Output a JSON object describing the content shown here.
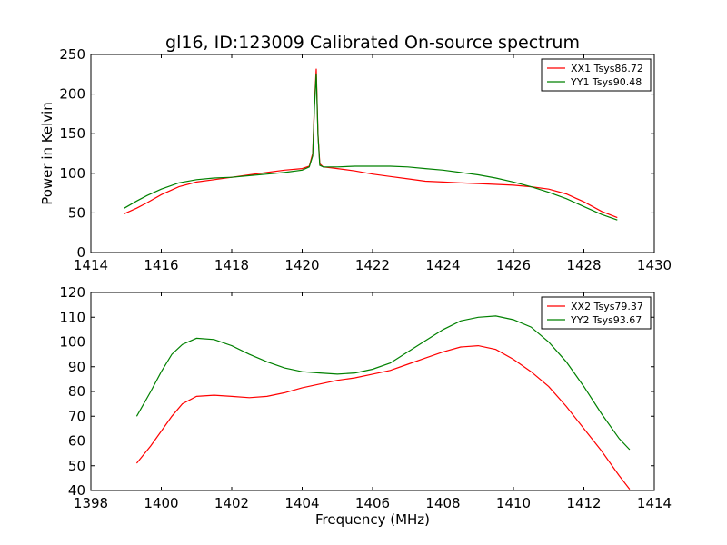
{
  "figure": {
    "title": "gl16, ID:123009 Calibrated On-source spectrum",
    "ylabel": "Power in Kelvin",
    "xlabel": "Frequency (MHz)"
  },
  "chart_data": [
    {
      "type": "line",
      "title": "gl16, ID:123009 Calibrated On-source spectrum",
      "xlabel": "",
      "ylabel": "Power in Kelvin",
      "xlim": [
        1414,
        1430
      ],
      "ylim": [
        0,
        250
      ],
      "xticks": [
        "1414",
        "1416",
        "1418",
        "1420",
        "1422",
        "1424",
        "1426",
        "1428",
        "1430"
      ],
      "yticks": [
        "0",
        "50",
        "100",
        "150",
        "200",
        "250"
      ],
      "grid": false,
      "legend_position": "top-right",
      "series": [
        {
          "name": "XX1 Tsys86.72",
          "color": "#ff0000",
          "x": [
            1414.95,
            1415.3,
            1415.6,
            1416.0,
            1416.5,
            1417.0,
            1417.5,
            1418.0,
            1418.5,
            1419.0,
            1419.5,
            1420.0,
            1420.2,
            1420.3,
            1420.35,
            1420.4,
            1420.45,
            1420.5,
            1420.6,
            1420.8,
            1421.0,
            1421.5,
            1422.0,
            1422.5,
            1423.0,
            1423.5,
            1424.0,
            1424.5,
            1425.0,
            1425.5,
            1426.0,
            1426.5,
            1427.0,
            1427.5,
            1428.0,
            1428.5,
            1428.95
          ],
          "y": [
            49,
            56,
            63,
            73,
            83,
            89,
            92,
            95,
            98,
            101,
            104,
            106,
            109,
            125,
            190,
            232,
            150,
            112,
            108,
            107,
            106,
            103,
            99,
            96,
            93,
            90,
            89,
            88,
            87,
            86,
            85,
            83,
            80,
            74,
            64,
            52,
            44
          ]
        },
        {
          "name": "YY1 Tsys90.48",
          "color": "#008000",
          "x": [
            1414.95,
            1415.3,
            1415.6,
            1416.0,
            1416.5,
            1417.0,
            1417.5,
            1418.0,
            1418.5,
            1419.0,
            1419.5,
            1420.0,
            1420.2,
            1420.3,
            1420.35,
            1420.4,
            1420.45,
            1420.5,
            1420.6,
            1420.8,
            1421.0,
            1421.5,
            1422.0,
            1422.5,
            1423.0,
            1423.5,
            1424.0,
            1424.5,
            1425.0,
            1425.5,
            1426.0,
            1426.5,
            1427.0,
            1427.5,
            1428.0,
            1428.5,
            1428.95
          ],
          "y": [
            56,
            65,
            72,
            80,
            88,
            92,
            94,
            95,
            97,
            99,
            101,
            104,
            108,
            122,
            185,
            226,
            148,
            110,
            108,
            108,
            108,
            109,
            109,
            109,
            108,
            106,
            104,
            101,
            98,
            94,
            89,
            83,
            76,
            68,
            58,
            48,
            41
          ]
        }
      ]
    },
    {
      "type": "line",
      "title": "",
      "xlabel": "Frequency (MHz)",
      "ylabel": "",
      "xlim": [
        1398,
        1414
      ],
      "ylim": [
        40,
        120
      ],
      "xticks": [
        "1398",
        "1400",
        "1402",
        "1404",
        "1406",
        "1408",
        "1410",
        "1412",
        "1414"
      ],
      "yticks": [
        "40",
        "50",
        "60",
        "70",
        "80",
        "90",
        "100",
        "110",
        "120"
      ],
      "grid": false,
      "legend_position": "top-right",
      "series": [
        {
          "name": "XX2 Tsys79.37",
          "color": "#ff0000",
          "x": [
            1399.3,
            1399.7,
            1400.0,
            1400.3,
            1400.6,
            1401.0,
            1401.5,
            1402.0,
            1402.5,
            1403.0,
            1403.5,
            1404.0,
            1404.5,
            1405.0,
            1405.5,
            1406.0,
            1406.5,
            1407.0,
            1407.5,
            1408.0,
            1408.5,
            1409.0,
            1409.5,
            1410.0,
            1410.5,
            1411.0,
            1411.5,
            1412.0,
            1412.5,
            1413.0,
            1413.3
          ],
          "y": [
            51,
            58,
            64,
            70,
            75,
            78,
            78.5,
            78,
            77.5,
            78,
            79.5,
            81.5,
            83,
            84.5,
            85.5,
            87,
            88.5,
            91,
            93.5,
            96,
            98,
            98.5,
            97,
            93,
            88,
            82,
            74,
            65,
            56,
            46,
            40.5
          ]
        },
        {
          "name": "YY2 Tsys93.67",
          "color": "#008000",
          "x": [
            1399.3,
            1399.7,
            1400.0,
            1400.3,
            1400.6,
            1401.0,
            1401.5,
            1402.0,
            1402.5,
            1403.0,
            1403.5,
            1404.0,
            1404.5,
            1405.0,
            1405.5,
            1406.0,
            1406.5,
            1407.0,
            1407.5,
            1408.0,
            1408.5,
            1409.0,
            1409.5,
            1410.0,
            1410.5,
            1411.0,
            1411.5,
            1412.0,
            1412.5,
            1413.0,
            1413.3
          ],
          "y": [
            70,
            80,
            88,
            95,
            99,
            101.5,
            101,
            98.5,
            95,
            92,
            89.5,
            88,
            87.5,
            87,
            87.5,
            89,
            91.5,
            96,
            100.5,
            105,
            108.5,
            110,
            110.5,
            109,
            106,
            100,
            92,
            82,
            71,
            61,
            56.5
          ]
        }
      ]
    }
  ]
}
